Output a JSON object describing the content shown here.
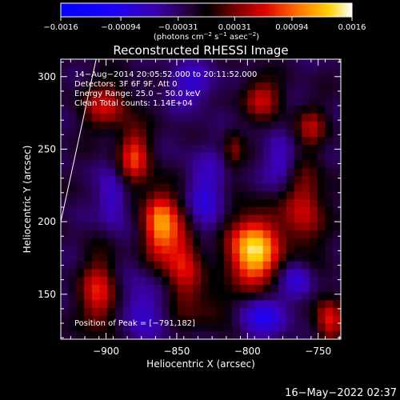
{
  "chart_data": {
    "type": "heatmap",
    "title": "Reconstructed RHESSI Image",
    "xlabel": "Heliocentric X (arcsec)",
    "ylabel": "Heliocentric Y (arcsec)",
    "xlim": [
      -932,
      -734
    ],
    "ylim": [
      119,
      312
    ],
    "x_ticks": [
      {
        "value": -900,
        "label": "−900"
      },
      {
        "value": -850,
        "label": "−850"
      },
      {
        "value": -800,
        "label": "−800"
      },
      {
        "value": -750,
        "label": "−750"
      }
    ],
    "y_ticks": [
      {
        "value": 150,
        "label": "150"
      },
      {
        "value": 200,
        "label": "200"
      },
      {
        "value": 250,
        "label": "250"
      },
      {
        "value": 300,
        "label": "300"
      }
    ],
    "colorbar": {
      "range": [
        -0.0016,
        0.0016
      ],
      "ticks": [
        {
          "value": -0.0016,
          "label": "−0.0016"
        },
        {
          "value": -0.00094,
          "label": "−0.00094"
        },
        {
          "value": -0.00031,
          "label": "−0.00031"
        },
        {
          "value": 0.00031,
          "label": "0.00031"
        },
        {
          "value": 0.00094,
          "label": "0.00094"
        },
        {
          "value": 0.0016,
          "label": "0.0016"
        }
      ],
      "unit_parts": [
        "(photons cm",
        "−2",
        " s",
        "−1",
        " asec",
        "−2",
        ")"
      ]
    },
    "annotations": [
      "14−Aug−2014 20:05:52.000 to 20:11:52.000",
      "Detectors: 3F 6F 9F, Att 0",
      "Energy Range: 25.0 − 50.0 keV",
      "Clean     Total counts: 1.14E+04"
    ],
    "peak_label": "Position of Peak = [−791,182]",
    "peak": {
      "x": -791,
      "y": 182
    },
    "limb_line": [
      {
        "x": -932,
        "y": 200
      },
      {
        "x": -907,
        "y": 312
      }
    ],
    "sources": [
      {
        "x": -796,
        "y": 180,
        "sx": 13,
        "sy": 17,
        "amp": 0.00165
      },
      {
        "x": -862,
        "y": 198,
        "sx": 9,
        "sy": 17,
        "amp": 0.00125
      },
      {
        "x": -880,
        "y": 245,
        "sx": 8,
        "sy": 14,
        "amp": 0.00095
      },
      {
        "x": -845,
        "y": 172,
        "sx": 9,
        "sy": 22,
        "amp": 0.0009
      },
      {
        "x": -900,
        "y": 280,
        "sx": 12,
        "sy": 12,
        "amp": 0.00075
      },
      {
        "x": -905,
        "y": 150,
        "sx": 9,
        "sy": 18,
        "amp": 0.0009
      },
      {
        "x": -760,
        "y": 210,
        "sx": 10,
        "sy": 22,
        "amp": 0.0008
      },
      {
        "x": -742,
        "y": 132,
        "sx": 7,
        "sy": 12,
        "amp": 0.0009
      },
      {
        "x": -790,
        "y": 285,
        "sx": 10,
        "sy": 10,
        "amp": 0.00075
      },
      {
        "x": -755,
        "y": 265,
        "sx": 8,
        "sy": 10,
        "amp": 0.0006
      },
      {
        "x": -810,
        "y": 250,
        "sx": 5,
        "sy": 10,
        "amp": 0.0005
      },
      {
        "x": -822,
        "y": 140,
        "sx": 10,
        "sy": 10,
        "amp": 0.0004
      },
      {
        "x": -875,
        "y": 140,
        "sx": 10,
        "sy": 16,
        "amp": -0.0005
      },
      {
        "x": -830,
        "y": 215,
        "sx": 10,
        "sy": 22,
        "amp": -0.00055
      },
      {
        "x": -895,
        "y": 215,
        "sx": 7,
        "sy": 14,
        "amp": -0.00055
      },
      {
        "x": -775,
        "y": 240,
        "sx": 9,
        "sy": 12,
        "amp": -0.0005
      },
      {
        "x": -790,
        "y": 135,
        "sx": 12,
        "sy": 10,
        "amp": -0.0007
      },
      {
        "x": -765,
        "y": 160,
        "sx": 8,
        "sy": 10,
        "amp": -0.0006
      },
      {
        "x": -840,
        "y": 295,
        "sx": 12,
        "sy": 10,
        "amp": -0.0005
      }
    ]
  },
  "footer_timestamp": "16−May−2022 02:37"
}
